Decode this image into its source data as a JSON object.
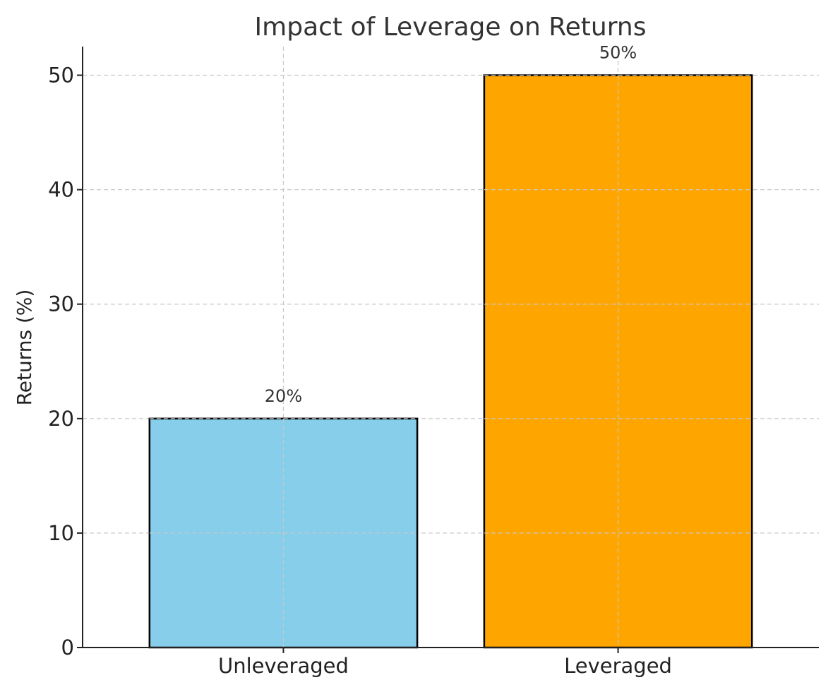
{
  "chart_data": {
    "type": "bar",
    "title": "Impact of Leverage on Returns",
    "xlabel": "",
    "ylabel": "Returns (%)",
    "categories": [
      "Unleveraged",
      "Leveraged"
    ],
    "values": [
      20,
      50
    ],
    "data_labels": [
      "20%",
      "50%"
    ],
    "colors": [
      "#87CEEB",
      "#FFA500"
    ],
    "ylim": [
      0,
      52.5
    ],
    "yticks": [
      0,
      10,
      20,
      30,
      40,
      50
    ],
    "grid": true
  }
}
